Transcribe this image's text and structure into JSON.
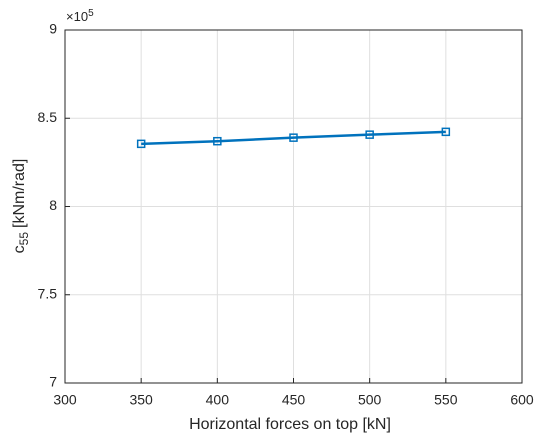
{
  "chart_data": {
    "type": "line",
    "xlabel": "Horizontal forces on top [kN]",
    "ylabel": "c",
    "ylabel_sub": "55",
    "ylabel_unit": "[kNm/rad]",
    "y_multiplier": "×10",
    "y_multiplier_exp": "5",
    "x": [
      350,
      400,
      450,
      500,
      550
    ],
    "series": [
      {
        "color": "#0072bd",
        "values": [
          8.355,
          8.37,
          8.39,
          8.407,
          8.423
        ]
      }
    ],
    "xlim": [
      300,
      600
    ],
    "xticks": [
      300,
      350,
      400,
      450,
      500,
      550,
      600
    ],
    "ylim": [
      7,
      9
    ],
    "yticks": [
      7,
      7.5,
      8,
      8.5,
      9
    ],
    "grid": true,
    "marker": "square"
  }
}
